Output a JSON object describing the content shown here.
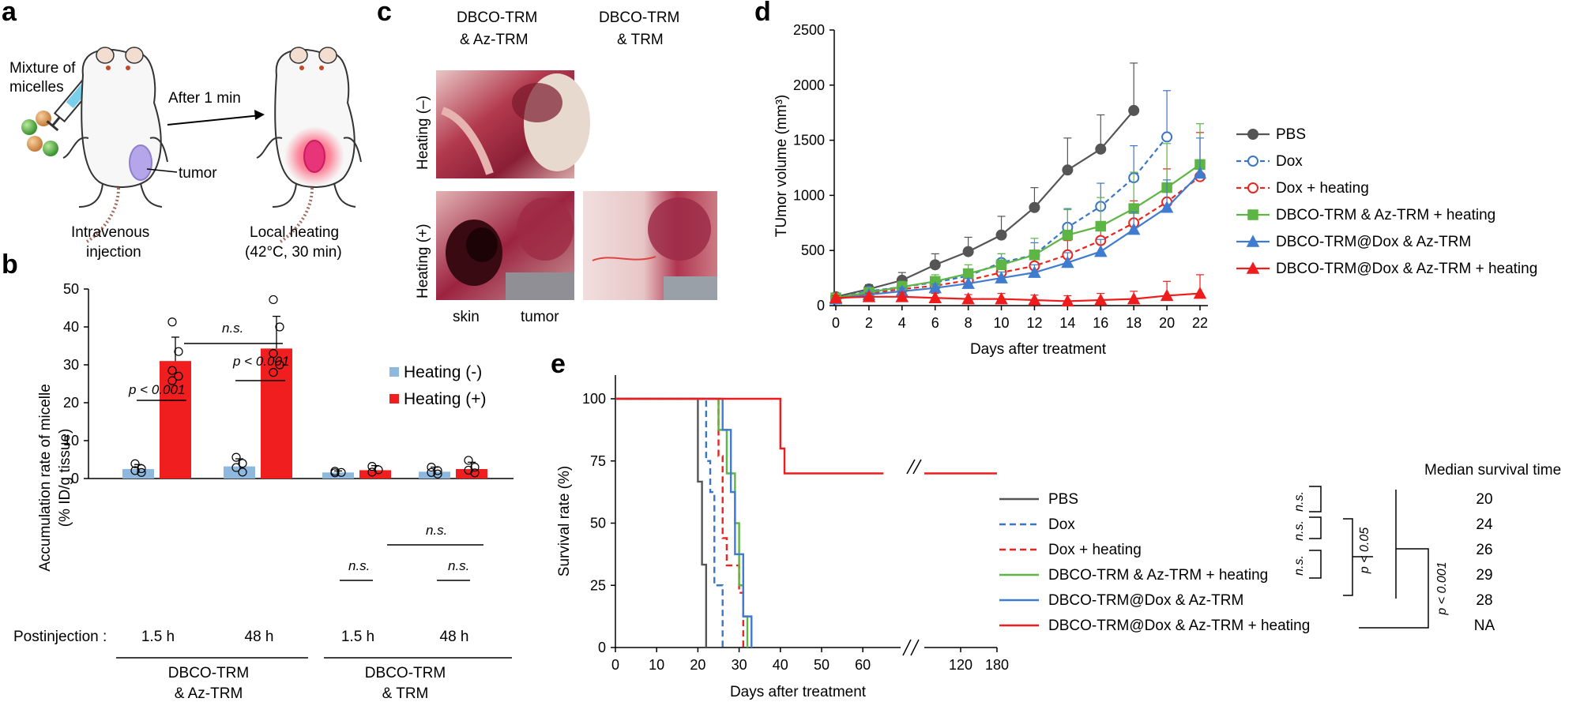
{
  "panel_labels": {
    "a": "a",
    "b": "b",
    "c": "c",
    "d": "d",
    "e": "e"
  },
  "panel_a": {
    "mixture_line1": "Mixture of",
    "mixture_line2": "micelles",
    "after": "After 1 min",
    "tumor": "tumor",
    "injection_line1": "Intravenous",
    "injection_line2": "injection",
    "heating_line1": "Local heating",
    "heating_line2": "(42°C, 30 min)",
    "colors": {
      "body": "#f7f7f7",
      "tumor": "#b4a6e8",
      "heat": "#e8357a",
      "micelle_green": "#4caf3e",
      "micelle_orange": "#d9934a"
    }
  },
  "panel_c": {
    "col1_line1": "DBCO-TRM",
    "col1_line2": "& Az-TRM",
    "col2_line1": "DBCO-TRM",
    "col2_line2": "& TRM",
    "row1": "Heating (–)",
    "row2": "Heating (+)",
    "skin": "skin",
    "tumor": "tumor"
  },
  "panel_b": {
    "chart_data": {
      "type": "bar",
      "ylabel_line1": "Accumulation rate of micelle",
      "ylabel_line2": "(% ID/g tissue)",
      "ylim": [
        0,
        50
      ],
      "yticks": [
        "0",
        "10",
        "20",
        "30",
        "40",
        "50"
      ],
      "postinjection_label": "Postinjection :",
      "times": [
        "1.5 h",
        "48 h",
        "1.5 h",
        "48 h"
      ],
      "group1_line1": "DBCO-TRM",
      "group1_line2": "& Az-TRM",
      "group2_line1": "DBCO-TRM",
      "group2_line2": "& TRM",
      "series": [
        {
          "name": "Heating (-)",
          "color": "#8fb8de",
          "values": [
            2.5,
            3.2,
            1.6,
            1.8
          ],
          "errors": [
            1.2,
            2.0,
            0.4,
            1.2
          ]
        },
        {
          "name": "Heating (+)",
          "color": "#f01e1e",
          "values": [
            31,
            34.3,
            2.2,
            2.5
          ],
          "errors": [
            6.3,
            8.5,
            1.2,
            1.8
          ]
        }
      ],
      "points": [
        [
          [
            3.9,
            2.6,
            2.1,
            1.6
          ],
          [
            41.3,
            33.5,
            28.5,
            27.0,
            25.8
          ]
        ],
        [
          [
            5.6,
            4.0,
            2.9,
            1.7
          ],
          [
            47.2,
            40.0,
            33.0,
            30.0,
            28.0
          ]
        ],
        [
          [
            1.9,
            1.6,
            1.5
          ],
          [
            3.2,
            2.3,
            1.7
          ]
        ],
        [
          [
            3.0,
            2.1,
            1.6,
            1.2
          ],
          [
            4.8,
            3.0,
            2.2,
            1.5
          ]
        ]
      ],
      "annotations": {
        "p1": "p < 0.001",
        "p2": "p < 0.001",
        "ns_top": "n.s.",
        "ns_a": "n.s.",
        "ns_b": "n.s.",
        "ns_c": "n.s."
      }
    }
  },
  "panel_d": {
    "chart_data": {
      "type": "line",
      "ylabel": "TUmor volume (mm³)",
      "xlabel": "Days after treatment",
      "x": [
        0,
        2,
        4,
        6,
        8,
        10,
        12,
        14,
        16,
        18,
        20,
        22
      ],
      "xticks": [
        "0",
        "2",
        "4",
        "6",
        "8",
        "10",
        "12",
        "14",
        "16",
        "18",
        "20",
        "22"
      ],
      "yticks": [
        "0",
        "500",
        "1000",
        "1500",
        "2000",
        "2500"
      ],
      "ylim": [
        0,
        2500
      ],
      "series": [
        {
          "name": "PBS",
          "color": "#555555",
          "marker": "circle",
          "fill": true,
          "dash": false,
          "values": [
            80,
            150,
            230,
            370,
            490,
            640,
            890,
            1230,
            1420,
            1770,
            null,
            null
          ],
          "errors": [
            20,
            40,
            70,
            100,
            130,
            170,
            180,
            290,
            310,
            430,
            null,
            null
          ]
        },
        {
          "name": "Dox",
          "color": "#3a76c4",
          "marker": "circle",
          "fill": false,
          "dash": true,
          "values": [
            70,
            130,
            170,
            210,
            270,
            390,
            460,
            710,
            900,
            1160,
            1530,
            null
          ],
          "errors": [
            15,
            30,
            40,
            50,
            60,
            80,
            110,
            170,
            210,
            290,
            420,
            null
          ]
        },
        {
          "name": "Dox + heating",
          "color": "#e8251f",
          "marker": "circle",
          "fill": false,
          "dash": true,
          "values": [
            60,
            110,
            150,
            180,
            230,
            300,
            360,
            460,
            590,
            750,
            940,
            1170
          ],
          "errors": [
            15,
            25,
            40,
            45,
            55,
            70,
            90,
            130,
            160,
            200,
            300,
            400
          ]
        },
        {
          "name": "DBCO-TRM & Az-TRM + heating",
          "color": "#5db543",
          "marker": "square",
          "fill": true,
          "dash": false,
          "values": [
            70,
            120,
            170,
            220,
            290,
            370,
            460,
            640,
            720,
            880,
            1070,
            1280
          ],
          "errors": [
            20,
            30,
            50,
            60,
            80,
            100,
            150,
            230,
            260,
            330,
            400,
            370
          ]
        },
        {
          "name": "DBCO-TRM@Dox & Az-TRM",
          "color": "#3f7cd0",
          "marker": "triangle",
          "fill": true,
          "dash": false,
          "values": [
            60,
            100,
            130,
            160,
            200,
            250,
            300,
            390,
            490,
            690,
            890,
            1200
          ],
          "errors": [
            15,
            20,
            30,
            35,
            45,
            55,
            70,
            90,
            110,
            160,
            250,
            320
          ]
        },
        {
          "name": "DBCO-TRM@Dox & Az-TRM + heating",
          "color": "#ee1c1c",
          "marker": "triangle",
          "fill": true,
          "dash": false,
          "values": [
            70,
            80,
            80,
            70,
            60,
            60,
            50,
            40,
            50,
            60,
            90,
            110
          ],
          "errors": [
            20,
            30,
            40,
            40,
            40,
            50,
            45,
            50,
            60,
            70,
            130,
            170
          ]
        }
      ]
    }
  },
  "panel_e": {
    "chart_data": {
      "type": "line",
      "ylabel": "Survival rate (%)",
      "xlabel": "Days after treatment",
      "yticks": [
        "0",
        "25",
        "50",
        "75",
        "100"
      ],
      "xticks": [
        "0",
        "10",
        "20",
        "30",
        "40",
        "50",
        "60",
        "120",
        "180"
      ],
      "series": [
        {
          "name": "PBS",
          "color": "#555555",
          "dash": false
        },
        {
          "name": "Dox",
          "color": "#3a76c4",
          "dash": true
        },
        {
          "name": "Dox + heating",
          "color": "#e8251f",
          "dash": true
        },
        {
          "name": "DBCO-TRM & Az-TRM + heating",
          "color": "#5db543",
          "dash": false
        },
        {
          "name": "DBCO-TRM@Dox & Az-TRM",
          "color": "#3f7cd0",
          "dash": false
        },
        {
          "name": "DBCO-TRM@Dox & Az-TRM + heating",
          "color": "#ee1c1c",
          "dash": false
        }
      ],
      "median_title": "Median survival time",
      "medians": [
        "20",
        "24",
        "26",
        "29",
        "28",
        "NA"
      ],
      "stats": {
        "ns1": "n.s.",
        "ns2": "n.s.",
        "ns3": "n.s.",
        "p1": "p < 0.05",
        "p2": "p < 0.001"
      }
    }
  }
}
